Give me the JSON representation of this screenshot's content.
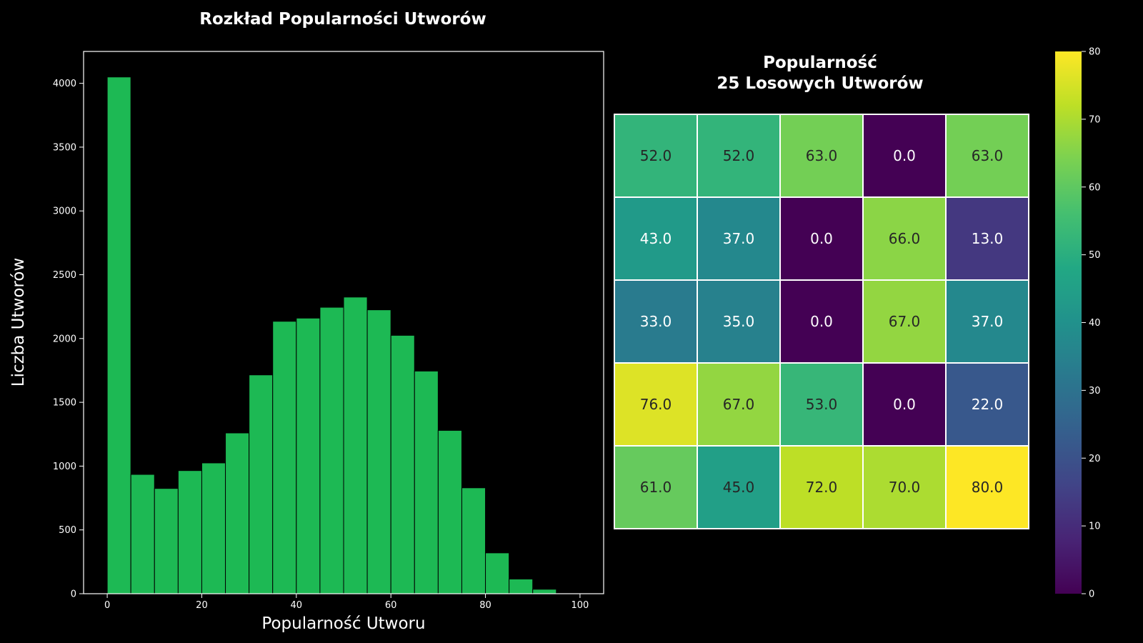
{
  "chart_data": [
    {
      "type": "bar",
      "title": "Rozkład Popularności Utworów",
      "xlabel": "Popularność Utworu",
      "ylabel": "Liczba Utworów",
      "bin_edges": [
        0,
        5,
        10,
        15,
        20,
        25,
        30,
        35,
        40,
        45,
        50,
        55,
        60,
        65,
        70,
        75,
        80,
        85,
        90,
        95,
        100
      ],
      "values": [
        4050,
        935,
        825,
        965,
        1025,
        1260,
        1715,
        2135,
        2160,
        2245,
        2325,
        2225,
        2025,
        1745,
        1280,
        830,
        320,
        115,
        35,
        5
      ],
      "xlim": [
        -5,
        105
      ],
      "ylim": [
        0,
        4250
      ],
      "xticks": [
        0,
        20,
        40,
        60,
        80,
        100
      ],
      "xtick_labels": [
        "0",
        "20",
        "40",
        "60",
        "80",
        "100"
      ],
      "yticks": [
        0,
        500,
        1000,
        1500,
        2000,
        2500,
        3000,
        3500,
        4000
      ],
      "ytick_labels": [
        "0",
        "500",
        "1000",
        "1500",
        "2000",
        "2500",
        "3000",
        "3500",
        "4000"
      ],
      "bar_color": "#1db954",
      "grid": false
    },
    {
      "type": "heatmap",
      "title_lines": [
        "Popularność",
        "25 Losowych Utworów"
      ],
      "rows": 5,
      "cols": 5,
      "values": [
        [
          52,
          52,
          63,
          0,
          63
        ],
        [
          43,
          37,
          0,
          66,
          13
        ],
        [
          33,
          35,
          0,
          67,
          37
        ],
        [
          76,
          67,
          53,
          0,
          22
        ],
        [
          61,
          45,
          72,
          70,
          80
        ]
      ],
      "labels": [
        [
          "52.0",
          "52.0",
          "63.0",
          "0.0",
          "63.0"
        ],
        [
          "43.0",
          "37.0",
          "0.0",
          "66.0",
          "13.0"
        ],
        [
          "33.0",
          "35.0",
          "0.0",
          "67.0",
          "37.0"
        ],
        [
          "76.0",
          "67.0",
          "53.0",
          "0.0",
          "22.0"
        ],
        [
          "61.0",
          "45.0",
          "72.0",
          "70.0",
          "80.0"
        ]
      ],
      "colormap": "viridis",
      "vmin": 0,
      "vmax": 80,
      "colorbar_ticks": [
        0,
        10,
        20,
        30,
        40,
        50,
        60,
        70,
        80
      ],
      "colorbar_tick_labels": [
        "0",
        "10",
        "20",
        "30",
        "40",
        "50",
        "60",
        "70",
        "80"
      ]
    }
  ]
}
